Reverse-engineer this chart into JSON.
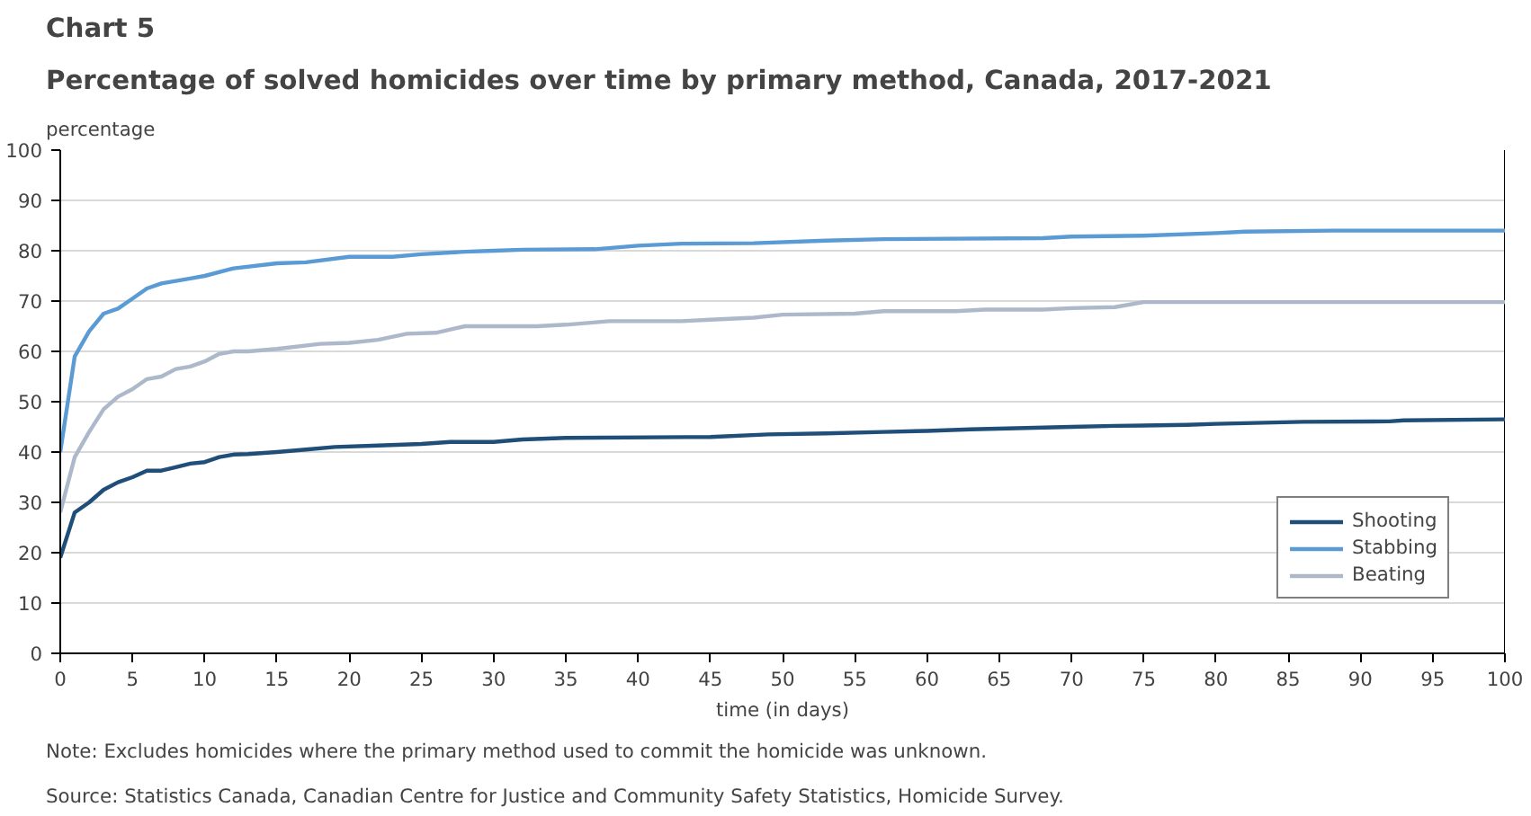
{
  "chart_data": {
    "type": "line",
    "title": "Chart 5",
    "subtitle": "Percentage of solved homicides over time by primary method, Canada, 2017-2021",
    "xlabel": "time (in days)",
    "ylabel": "percentage",
    "annotations": [
      "Note: Excludes homicides where the primary method used to commit the homicide was unknown.",
      "Source: Statistics Canada, Canadian Centre for Justice and Community Safety Statistics, Homicide Survey."
    ],
    "xlim": [
      0,
      100
    ],
    "xticks": [
      0,
      5,
      10,
      15,
      20,
      25,
      30,
      35,
      40,
      45,
      50,
      55,
      60,
      65,
      70,
      75,
      80,
      85,
      90,
      95,
      100
    ],
    "ylim": [
      0,
      100
    ],
    "yticks": [
      0,
      10,
      20,
      30,
      40,
      50,
      60,
      70,
      80,
      90,
      100
    ],
    "grid": "y",
    "legend": "bottom right",
    "marker": "none",
    "line_style": "solid",
    "series": [
      {
        "name": "Shooting",
        "color": "#1f4e79",
        "x": [
          0,
          1,
          2,
          3,
          4,
          5,
          6,
          7,
          8,
          9,
          10,
          11,
          12,
          13,
          15,
          17,
          19,
          22,
          25,
          27,
          30,
          32,
          35,
          45,
          49,
          53,
          57,
          60,
          63,
          70,
          73,
          78,
          80,
          86,
          92,
          93,
          100
        ],
        "values": [
          19,
          28,
          30,
          32.5,
          34,
          35,
          36.3,
          36.3,
          37,
          37.7,
          38,
          39,
          39.5,
          39.6,
          40,
          40.5,
          41,
          41.3,
          41.6,
          42,
          42,
          42.5,
          42.8,
          43,
          43.5,
          43.7,
          44,
          44.2,
          44.5,
          45,
          45.2,
          45.4,
          45.6,
          46,
          46.1,
          46.3,
          46.5
        ]
      },
      {
        "name": "Stabbing",
        "color": "#5b9bd5",
        "x": [
          0,
          1,
          2,
          3,
          4,
          5,
          6,
          7,
          8,
          9,
          10,
          12,
          15,
          17,
          20,
          23,
          25,
          28,
          30,
          32,
          37,
          40,
          43,
          48,
          53,
          57,
          68,
          70,
          75,
          80,
          82,
          88,
          100
        ],
        "values": [
          40,
          59,
          64,
          67.5,
          68.5,
          70.5,
          72.5,
          73.5,
          74,
          74.5,
          75,
          76.5,
          77.5,
          77.7,
          78.8,
          78.8,
          79.3,
          79.8,
          80,
          80.2,
          80.3,
          81,
          81.4,
          81.5,
          82,
          82.3,
          82.5,
          82.8,
          83,
          83.5,
          83.8,
          84,
          84
        ]
      },
      {
        "name": "Beating",
        "color": "#adb9ca",
        "x": [
          0,
          1,
          2,
          3,
          4,
          5,
          6,
          7,
          8,
          9,
          10,
          11,
          12,
          13,
          15,
          18,
          20,
          22,
          24,
          26,
          28,
          33,
          35,
          38,
          43,
          45,
          48,
          50,
          55,
          57,
          62,
          64,
          68,
          70,
          73,
          75,
          100
        ],
        "values": [
          28,
          39,
          44,
          48.5,
          51,
          52.5,
          54.5,
          55,
          56.5,
          57,
          58,
          59.5,
          60,
          60,
          60.5,
          61.5,
          61.7,
          62.3,
          63.5,
          63.7,
          65,
          65,
          65.3,
          66,
          66,
          66.3,
          66.7,
          67.3,
          67.5,
          68,
          68,
          68.3,
          68.3,
          68.6,
          68.8,
          69.8,
          69.8
        ]
      }
    ]
  }
}
